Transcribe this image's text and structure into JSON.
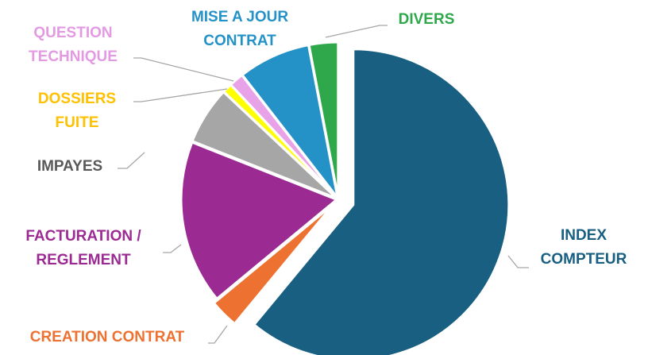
{
  "chart_data": {
    "type": "pie",
    "categories": [
      "INDEX\nCOMPTEUR",
      "CREATION CONTRAT",
      "FACTURATION /\nREGLEMENT",
      "IMPAYES",
      "DOSSIERS\nFUITE",
      "QUESTION\nTECHNIQUE",
      "MISE A JOUR\nCONTRAT",
      "DIVERS"
    ],
    "values": [
      61,
      3,
      17,
      6,
      1,
      1.5,
      7.5,
      3
    ],
    "colors": [
      "#185f82",
      "#ed7232",
      "#9c2a93",
      "#a6a6a6",
      "#ffff00",
      "#e8a2e8",
      "#2592c7",
      "#2ea84a"
    ],
    "label_colors": [
      "#185f82",
      "#ed7232",
      "#9c2a93",
      "#595959",
      "#ffc000",
      "#e39ae3",
      "#2592c7",
      "#2ea84a"
    ]
  }
}
